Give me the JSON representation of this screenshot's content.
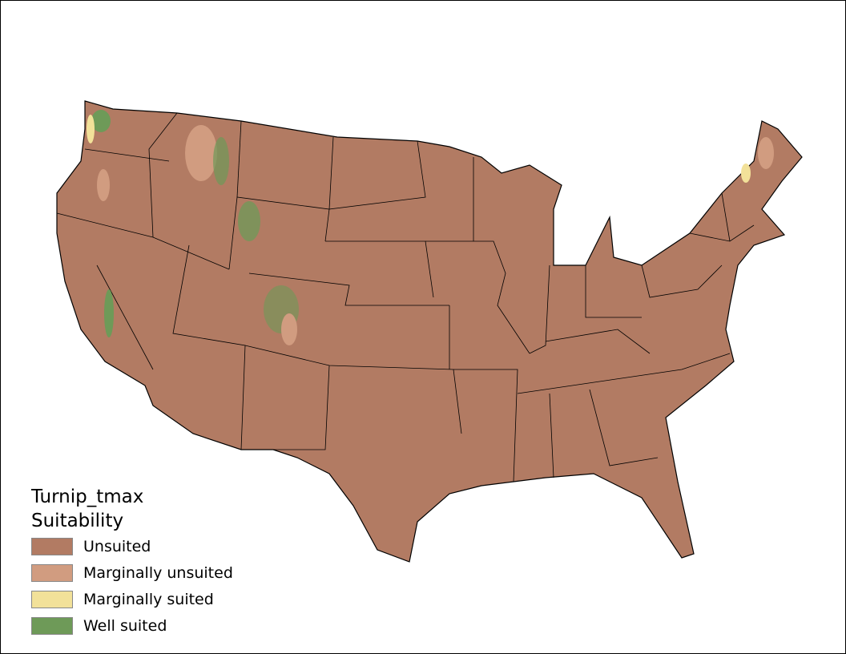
{
  "legend": {
    "title_line1": "Turnip_tmax",
    "title_line2": "Suitability",
    "items": [
      {
        "label": "Unsuited",
        "color": "#b27b63"
      },
      {
        "label": "Marginally unsuited",
        "color": "#d19c80"
      },
      {
        "label": "Marginally suited",
        "color": "#f2e199"
      },
      {
        "label": "Well suited",
        "color": "#6e9a58"
      }
    ]
  }
}
